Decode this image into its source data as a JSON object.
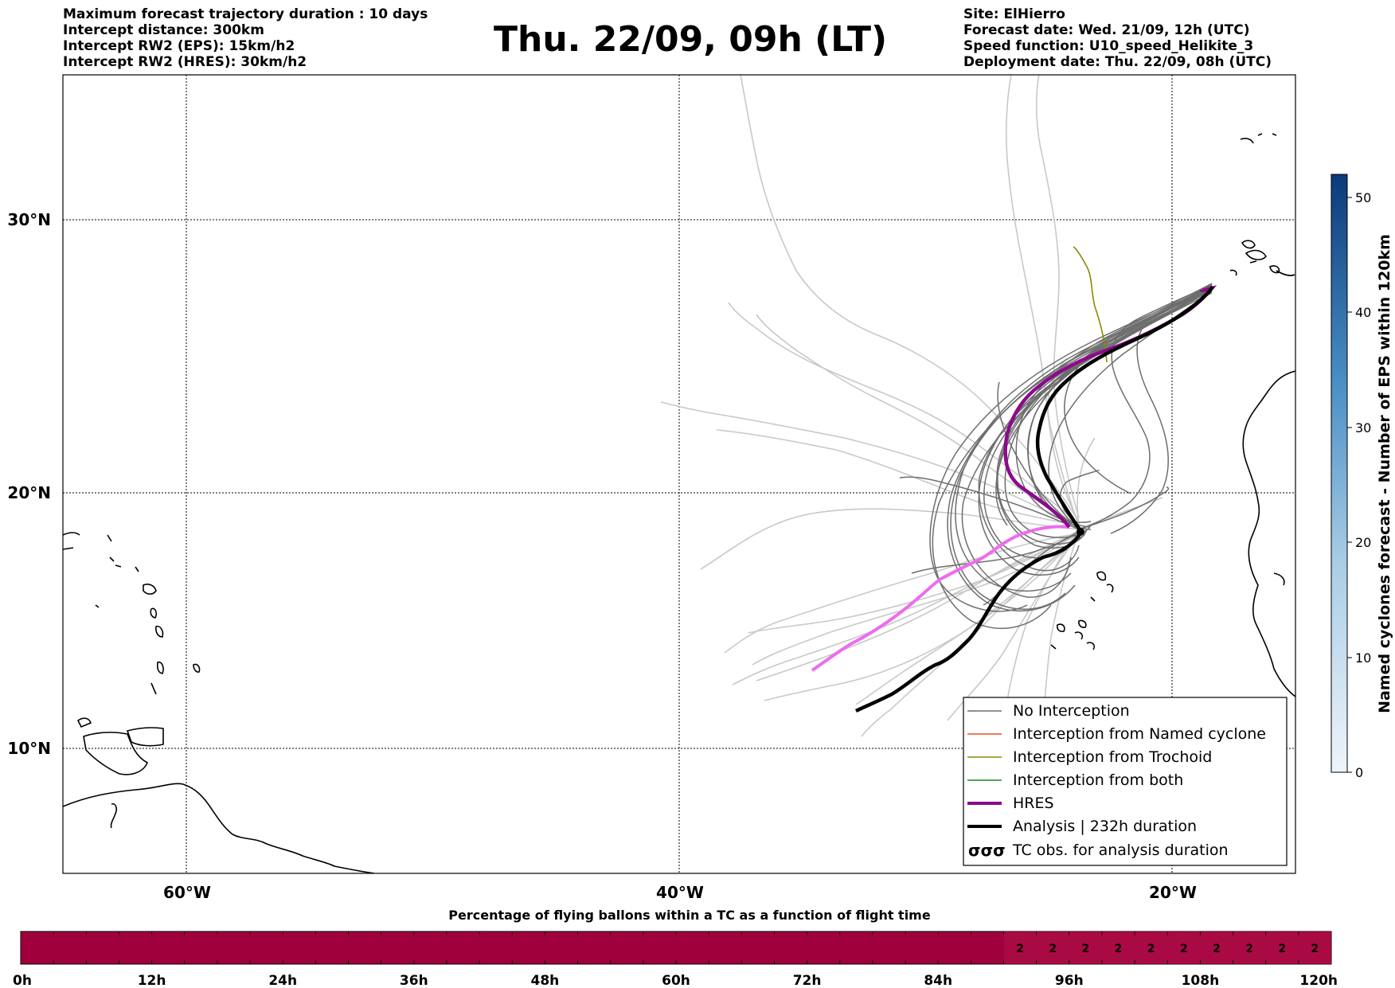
{
  "header": {
    "left_lines": [
      "Maximum forecast trajectory duration : 10 days",
      "Intercept distance: 300km",
      "Intercept RW2 (EPS):  15km/h2",
      "Intercept RW2 (HRES): 30km/h2"
    ],
    "title": "Thu. 22/09, 09h (LT)",
    "right_lines": [
      "Site: ElHierro",
      "Forecast date: Wed. 21/09, 12h (UTC)",
      "Speed function: U10_speed_Helikite_3",
      "Deployment date: Thu. 22/09, 08h (UTC)"
    ]
  },
  "map": {
    "lat_labels": [
      "30°N",
      "20°N",
      "10°N"
    ],
    "lon_labels": [
      "60°W",
      "40°W",
      "20°W"
    ],
    "legend": {
      "no_interception": "No Interception",
      "named_cyclone": "Interception from Named cyclone",
      "trochoid": "Interception from Trochoid",
      "both": "Interception from both",
      "hres": "HRES",
      "analysis": "Analysis | 232h duration",
      "tc_obs": "TC obs. for analysis duration",
      "tc_obs_symbol": "σσσ"
    },
    "colors": {
      "no_interception": "#6e6e6e",
      "named_cyclone": "#e8501e",
      "trochoid": "#8a8a00",
      "both": "#1a8a1a",
      "hres": "#8b0a8b",
      "hres_light": "#ee6cee",
      "analysis": "#000000",
      "ensemble_light": "#c8c8c8"
    }
  },
  "colorbar": {
    "label": "Named cyclones forecast - Number of EPS within 120km",
    "ticks": [
      "0",
      "10",
      "20",
      "30",
      "40",
      "50"
    ]
  },
  "timebar": {
    "title": "Percentage of flying ballons within a TC as a function of flight time",
    "ticks": [
      "0h",
      "12h",
      "24h",
      "36h",
      "48h",
      "60h",
      "72h",
      "84h",
      "96h",
      "108h",
      "120h"
    ],
    "cell_values": [
      "2",
      "2",
      "2",
      "2",
      "2",
      "2",
      "2",
      "2",
      "2",
      "2"
    ],
    "color": "#a0003c"
  }
}
